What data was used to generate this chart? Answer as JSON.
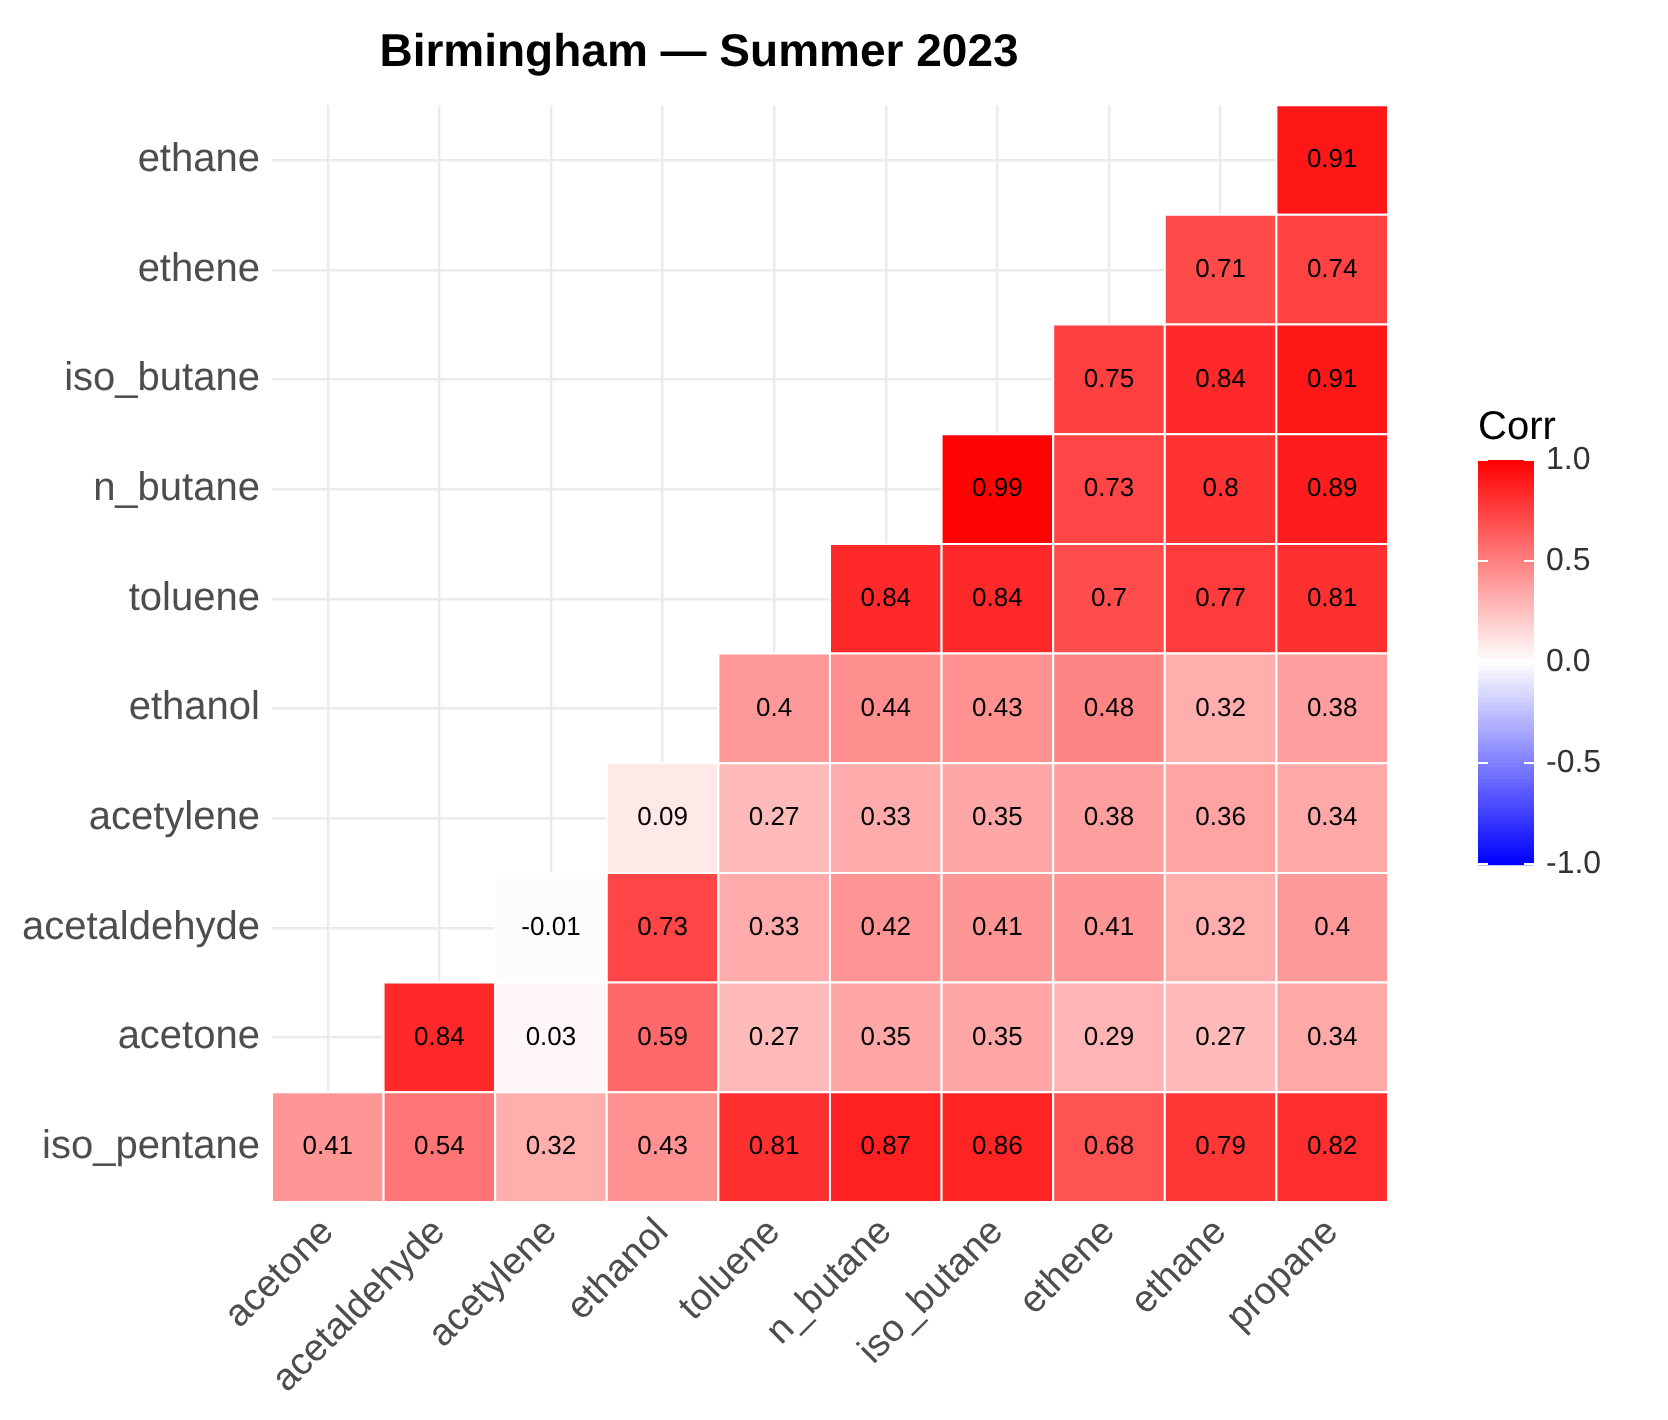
{
  "chart_data": {
    "type": "heatmap",
    "title": "Birmingham — Summer 2023",
    "legend_title": "Corr",
    "categories": [
      "acetone",
      "acetaldehyde",
      "acetylene",
      "ethanol",
      "toluene",
      "n_butane",
      "iso_butane",
      "ethene",
      "ethane",
      "propane"
    ],
    "y_categories": [
      "ethane",
      "ethene",
      "iso_butane",
      "n_butane",
      "toluene",
      "ethanol",
      "acetylene",
      "acetaldehyde",
      "acetone",
      "iso_pentane"
    ],
    "cells": [
      [
        null,
        null,
        null,
        null,
        null,
        null,
        null,
        null,
        null,
        0.91
      ],
      [
        null,
        null,
        null,
        null,
        null,
        null,
        null,
        null,
        0.71,
        0.74
      ],
      [
        null,
        null,
        null,
        null,
        null,
        null,
        null,
        0.75,
        0.84,
        0.91
      ],
      [
        null,
        null,
        null,
        null,
        null,
        null,
        0.99,
        0.73,
        0.8,
        0.89
      ],
      [
        null,
        null,
        null,
        null,
        null,
        0.84,
        0.84,
        0.7,
        0.77,
        0.81
      ],
      [
        null,
        null,
        null,
        null,
        0.4,
        0.44,
        0.43,
        0.48,
        0.32,
        0.38
      ],
      [
        null,
        null,
        null,
        0.09,
        0.27,
        0.33,
        0.35,
        0.38,
        0.36,
        0.34
      ],
      [
        null,
        null,
        -0.01,
        0.73,
        0.33,
        0.42,
        0.41,
        0.41,
        0.32,
        0.4
      ],
      [
        null,
        0.84,
        0.03,
        0.59,
        0.27,
        0.35,
        0.35,
        0.29,
        0.27,
        0.34
      ],
      [
        0.41,
        0.54,
        0.32,
        0.43,
        0.81,
        0.87,
        0.86,
        0.68,
        0.79,
        0.82
      ]
    ],
    "clim": [
      -1,
      1
    ],
    "cticks": [
      {
        "value": 1,
        "label": "1.0"
      },
      {
        "value": 0.5,
        "label": "0.5"
      },
      {
        "value": 0,
        "label": "0.0"
      },
      {
        "value": -0.5,
        "label": "-0.5"
      },
      {
        "value": -1,
        "label": "-1.0"
      }
    ],
    "data_labels": true,
    "grid": true
  }
}
